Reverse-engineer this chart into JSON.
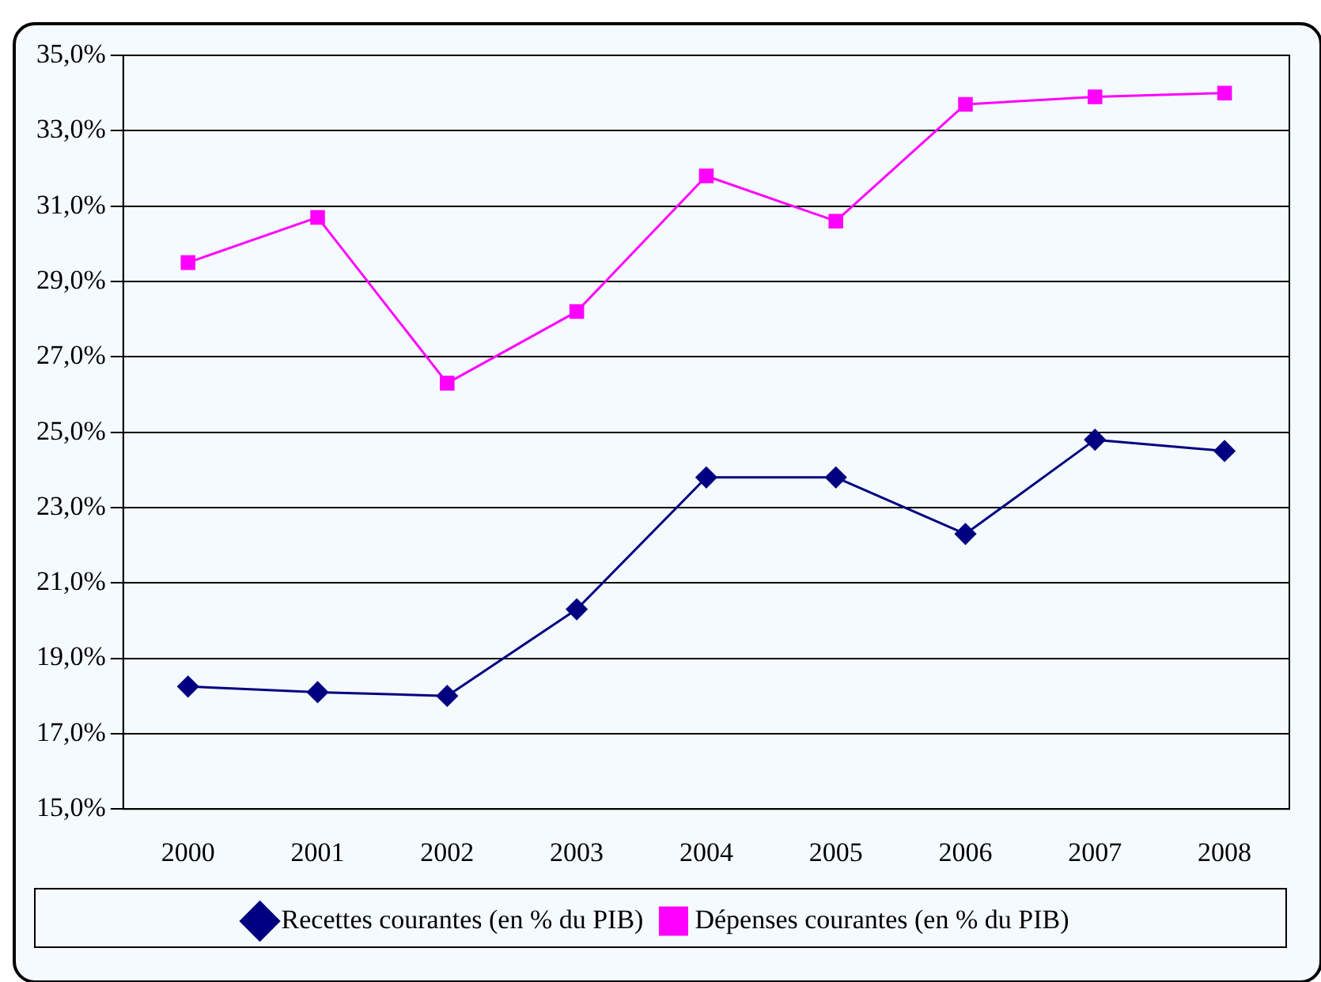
{
  "chart_data": {
    "type": "line",
    "categories": [
      "2000",
      "2001",
      "2002",
      "2003",
      "2004",
      "2005",
      "2006",
      "2007",
      "2008"
    ],
    "series": [
      {
        "name": "Recettes courantes (en % du PIB)",
        "color": "#000080",
        "marker": "diamond",
        "values": [
          18.25,
          18.1,
          18.0,
          20.3,
          23.8,
          23.8,
          22.3,
          24.8,
          24.5
        ]
      },
      {
        "name": "Dépenses courantes (en % du PIB)",
        "color": "#ff00ff",
        "marker": "square",
        "values": [
          29.5,
          30.7,
          26.3,
          28.2,
          31.8,
          30.6,
          33.7,
          33.9,
          34.0
        ]
      }
    ],
    "ylim": [
      15,
      35
    ],
    "yticks": [
      {
        "value": 15,
        "label": "15,0%"
      },
      {
        "value": 17,
        "label": "17,0%"
      },
      {
        "value": 19,
        "label": "19,0%"
      },
      {
        "value": 21,
        "label": "21,0%"
      },
      {
        "value": 23,
        "label": "23,0%"
      },
      {
        "value": 25,
        "label": "25,0%"
      },
      {
        "value": 27,
        "label": "27,0%"
      },
      {
        "value": 29,
        "label": "29,0%"
      },
      {
        "value": 31,
        "label": "31,0%"
      },
      {
        "value": 33,
        "label": "33,0%"
      },
      {
        "value": 35,
        "label": "35,0%"
      }
    ],
    "grid": "y",
    "legend": "bottom",
    "line_style": "solid"
  }
}
